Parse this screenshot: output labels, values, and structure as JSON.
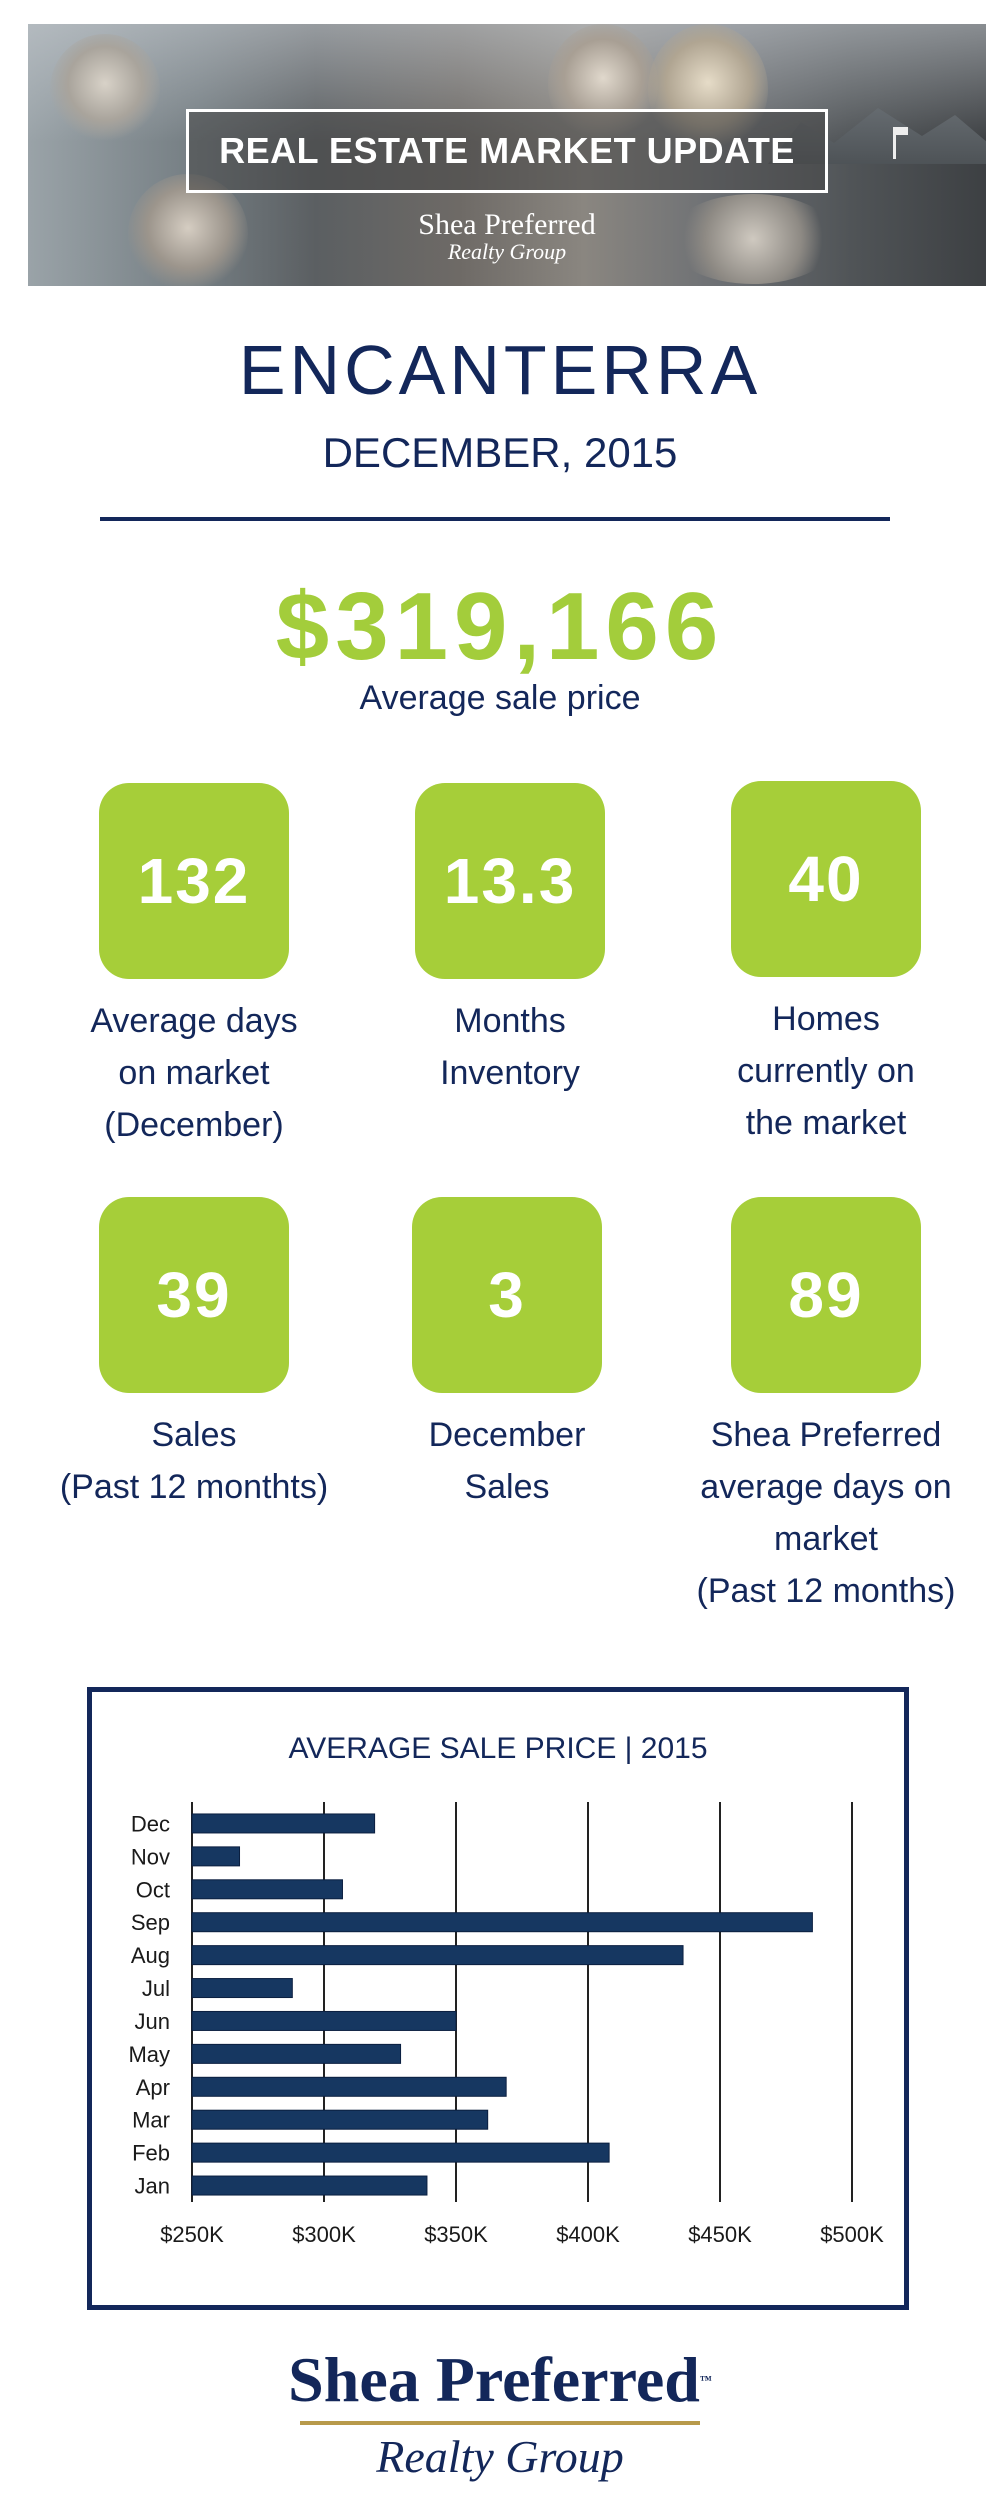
{
  "banner": {
    "title": "REAL ESTATE MARKET UPDATE",
    "logo_line1": "Shea Preferred",
    "logo_line2": "Realty Group"
  },
  "community": "ENCANTERRA",
  "period": "DECEMBER, 2015",
  "average_price": {
    "value": "$319,166",
    "label": "Average sale price"
  },
  "stats": [
    {
      "value": "132",
      "label": "Average days\non market\n(December)"
    },
    {
      "value": "13.3",
      "label": "Months\nInventory"
    },
    {
      "value": "40",
      "label": "Homes\ncurrently on\nthe market"
    },
    {
      "value": "39",
      "label": "Sales\n(Past 12 monthts)"
    },
    {
      "value": "3",
      "label": "December\nSales"
    },
    {
      "value": "89",
      "label": "Shea Preferred\naverage days on\nmarket\n(Past 12 months)"
    }
  ],
  "colors": {
    "navy": "#13275a",
    "green": "#a6ce39",
    "bar": "#163761"
  },
  "chart_data": {
    "type": "bar",
    "orientation": "horizontal",
    "title": "AVERAGE SALE PRICE | 2015",
    "categories": [
      "Dec",
      "Nov",
      "Oct",
      "Sep",
      "Aug",
      "Jul",
      "Jun",
      "May",
      "Apr",
      "Mar",
      "Feb",
      "Jan"
    ],
    "values": [
      319166,
      268000,
      307000,
      485000,
      436000,
      288000,
      350000,
      329000,
      369000,
      362000,
      408000,
      339000
    ],
    "xlim": [
      250000,
      500000
    ],
    "xticks": [
      250000,
      300000,
      350000,
      400000,
      450000,
      500000
    ],
    "xtick_labels": [
      "$250K",
      "$300K",
      "$350K",
      "$400K",
      "$450K",
      "$500K"
    ],
    "grid": true,
    "legend": "none"
  },
  "footer": {
    "logo_line1": "Shea Preferred",
    "trademark": "™",
    "logo_line2": "Realty Group"
  }
}
